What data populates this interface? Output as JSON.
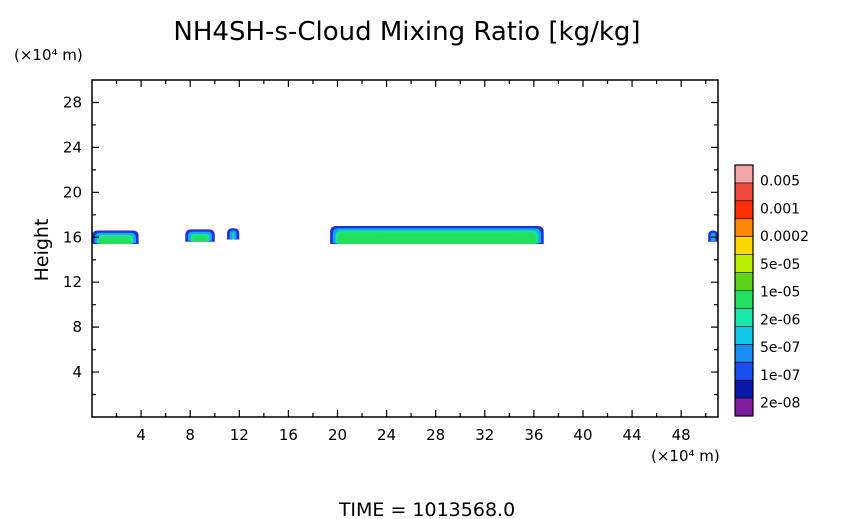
{
  "chart_data": {
    "type": "heatmap",
    "title": "NH4SH-s-Cloud Mixing Ratio [kg/kg]",
    "ylabel": "Height",
    "y_unit": "(×10⁴ m)",
    "x_unit": "(×10⁴ m)",
    "footer": "TIME  =  1013568.0",
    "xlim": [
      0,
      51
    ],
    "ylim": [
      0,
      30
    ],
    "x_ticks": [
      "4",
      "8",
      "12",
      "16",
      "20",
      "24",
      "28",
      "32",
      "36",
      "40",
      "44",
      "48"
    ],
    "y_ticks": [
      "4",
      "8",
      "12",
      "16",
      "20",
      "24",
      "28"
    ],
    "colorbar": {
      "labels": [
        "0.005",
        "0.001",
        "0.0002",
        "5e-05",
        "1e-05",
        "2e-06",
        "5e-07",
        "1e-07",
        "2e-08"
      ],
      "colors": [
        "#f4a6a6",
        "#f04a3c",
        "#ff3000",
        "#ff8a00",
        "#ffd800",
        "#b8ee00",
        "#5cd41a",
        "#22e060",
        "#18e8a8",
        "#10c8e6",
        "#1a8ef0",
        "#1a4ef0",
        "#0a1aa8",
        "#7d1e9e"
      ]
    },
    "cloud_bands": [
      {
        "x_start": 0.0,
        "x_end": 3.8,
        "top": 16.6,
        "bottom": 15.4,
        "layers": [
          "#2230d8",
          "#10a8f0",
          "#1ae29a",
          "#22e05c"
        ]
      },
      {
        "x_start": 7.6,
        "x_end": 10.0,
        "top": 16.7,
        "bottom": 15.6,
        "layers": [
          "#2230d8",
          "#10a8f0",
          "#1ae29a",
          "#22e05c"
        ]
      },
      {
        "x_start": 11.0,
        "x_end": 12.0,
        "top": 16.8,
        "bottom": 15.8,
        "layers": [
          "#2230d8",
          "#10a8f0",
          "#1ae29a"
        ]
      },
      {
        "x_start": 19.4,
        "x_end": 36.8,
        "top": 17.0,
        "bottom": 15.4,
        "layers": [
          "#2230d8",
          "#10a8f0",
          "#1ae29a",
          "#22e05c"
        ]
      },
      {
        "x_start": 50.2,
        "x_end": 51.0,
        "top": 16.6,
        "bottom": 15.6,
        "layers": [
          "#2230d8",
          "#10a8f0",
          "#1ae29a"
        ]
      }
    ]
  }
}
